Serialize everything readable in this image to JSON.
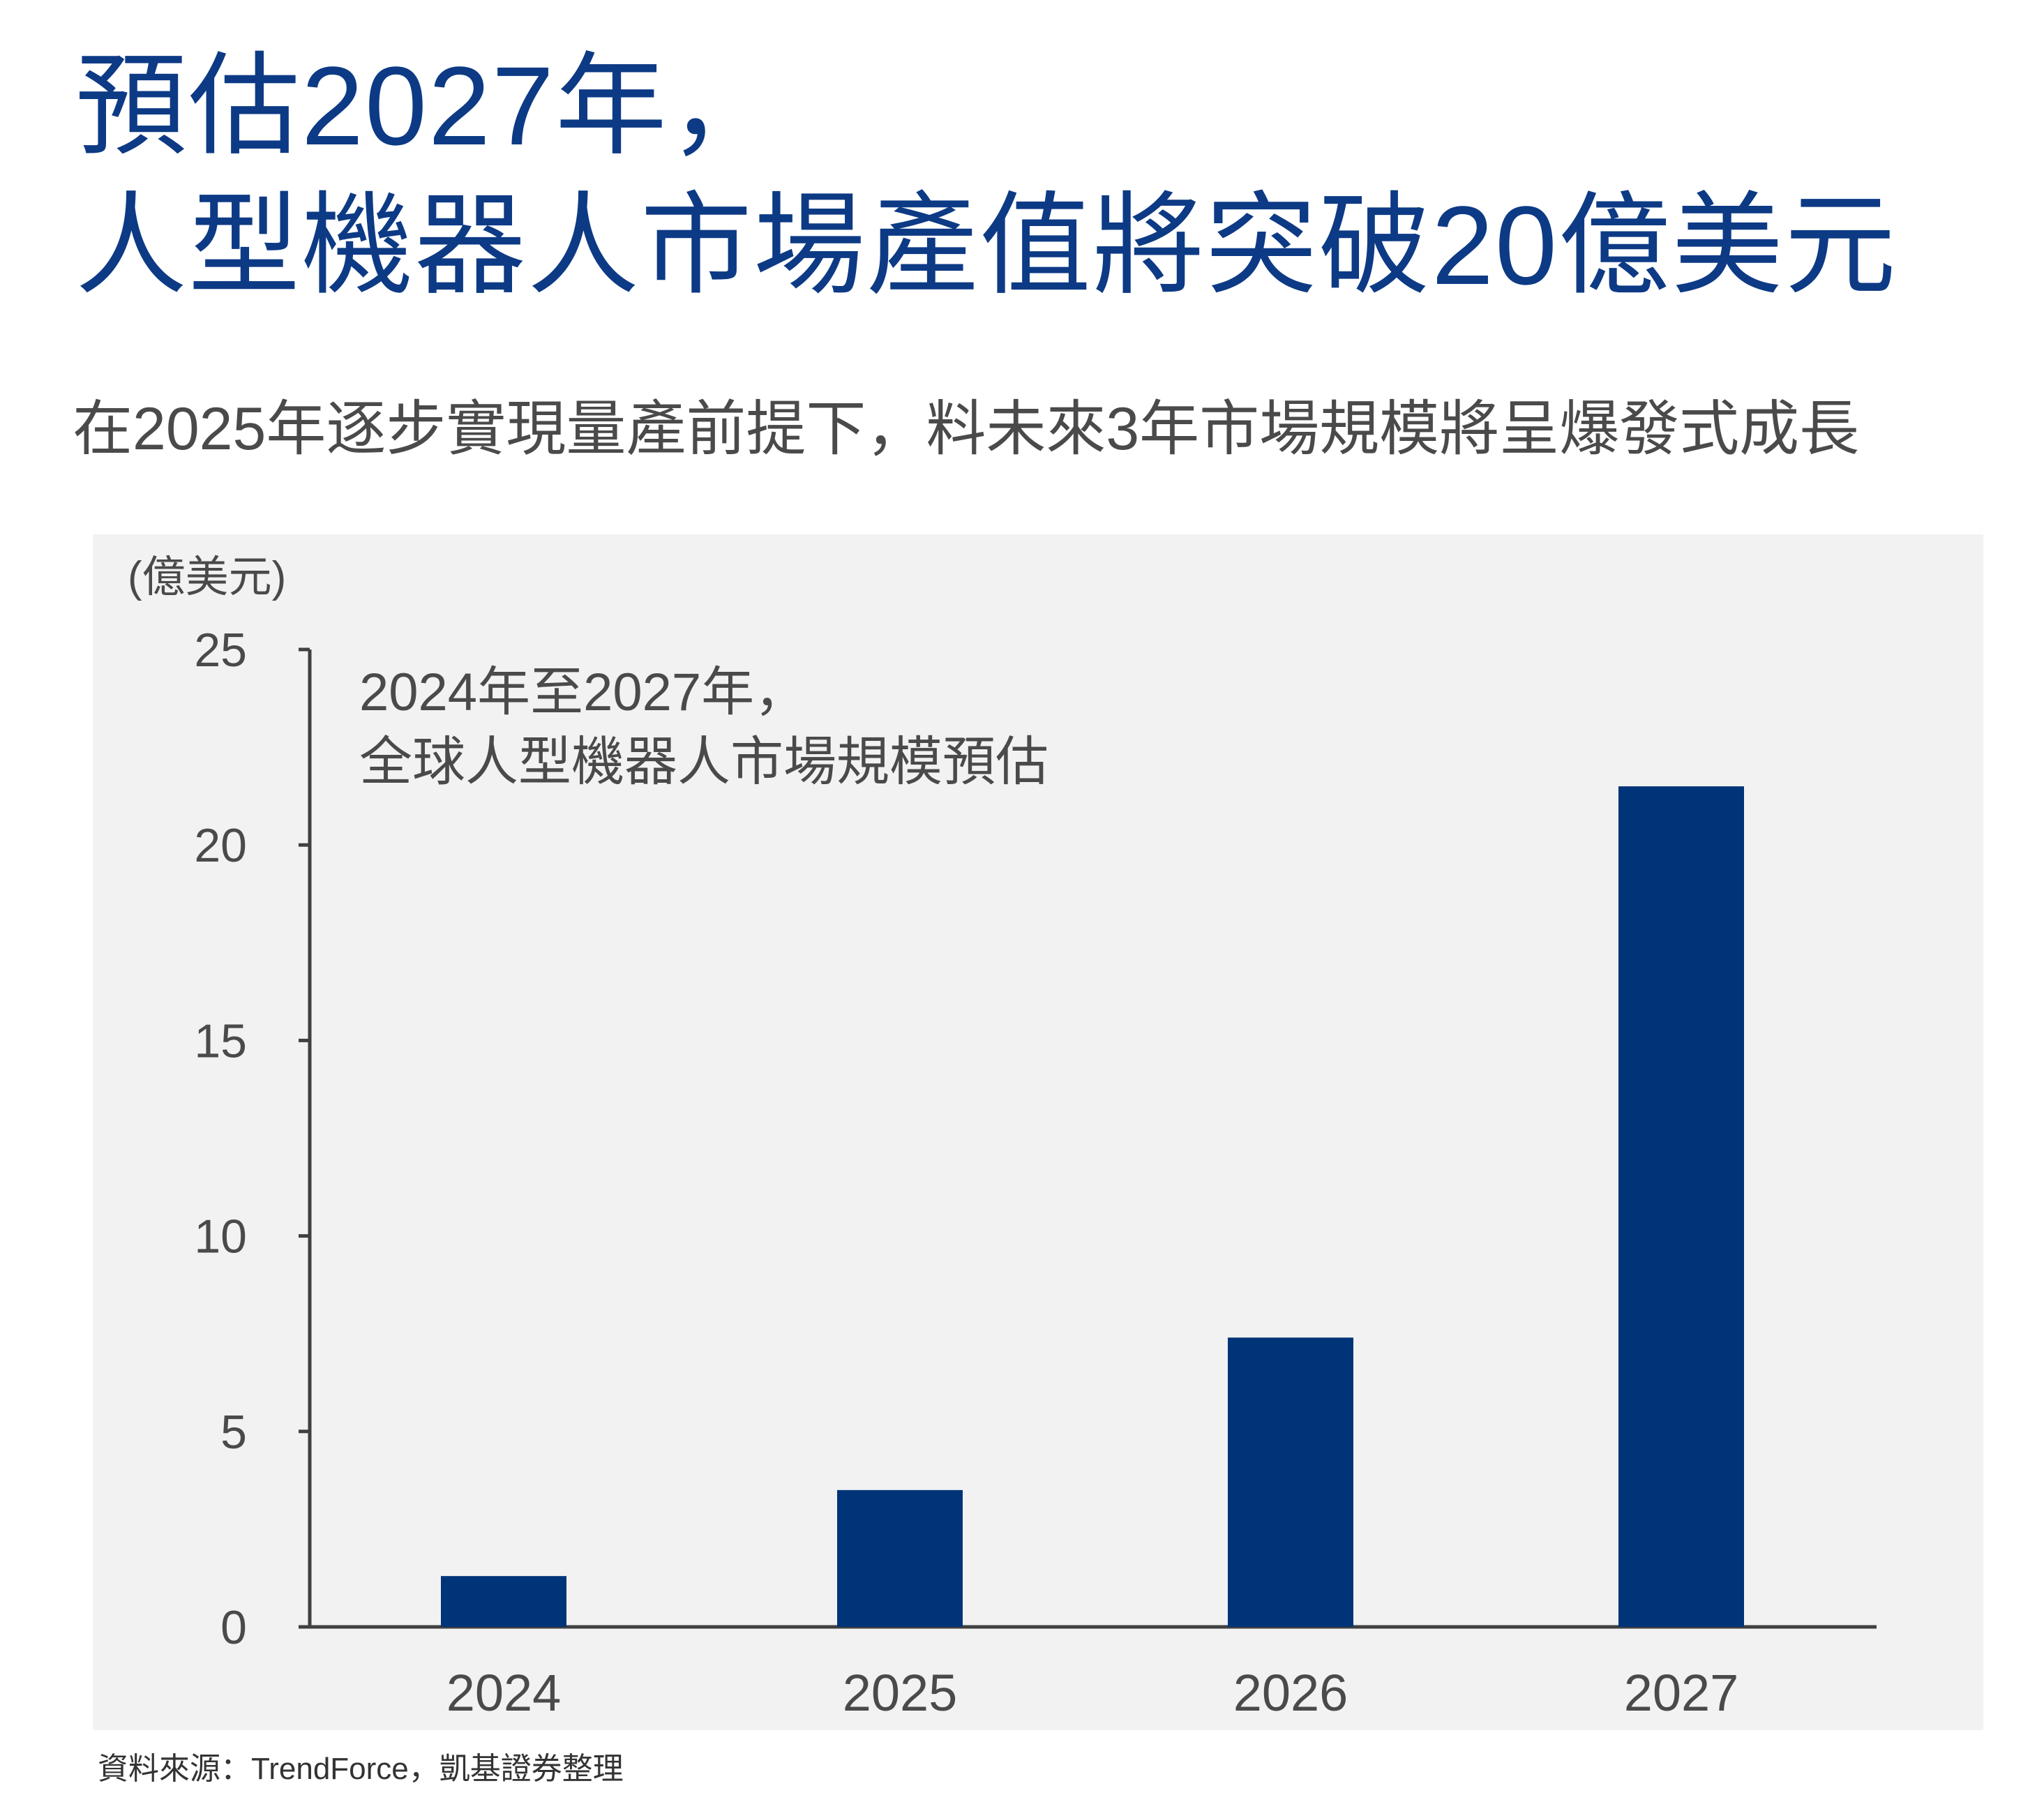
{
  "title_lines": [
    "預估2027年，",
    "人型機器人市場產值將突破20億美元"
  ],
  "subtitle": "在2025年逐步實現量產前提下，料未來3年市場規模將呈爆發式成長",
  "colors": {
    "title": "#0d3a85",
    "bar": "#003478",
    "panel": "#f2f2f2",
    "axis": "#404040",
    "text": "#4a4a4a"
  },
  "chart_data": {
    "type": "bar",
    "title_lines": [
      "2024年至2027年，",
      "全球人型機器人市場規模預估"
    ],
    "ylabel": "(億美元)",
    "xlabel": "",
    "categories": [
      "2024",
      "2025",
      "2026",
      "2027"
    ],
    "values": [
      1.3,
      3.5,
      7.4,
      21.5
    ],
    "ylim": [
      0,
      25
    ],
    "yticks": [
      0,
      5,
      10,
      15,
      20,
      25
    ],
    "grid": false,
    "legend": "none"
  },
  "source": "資料來源：TrendForce，凱基證券整理"
}
